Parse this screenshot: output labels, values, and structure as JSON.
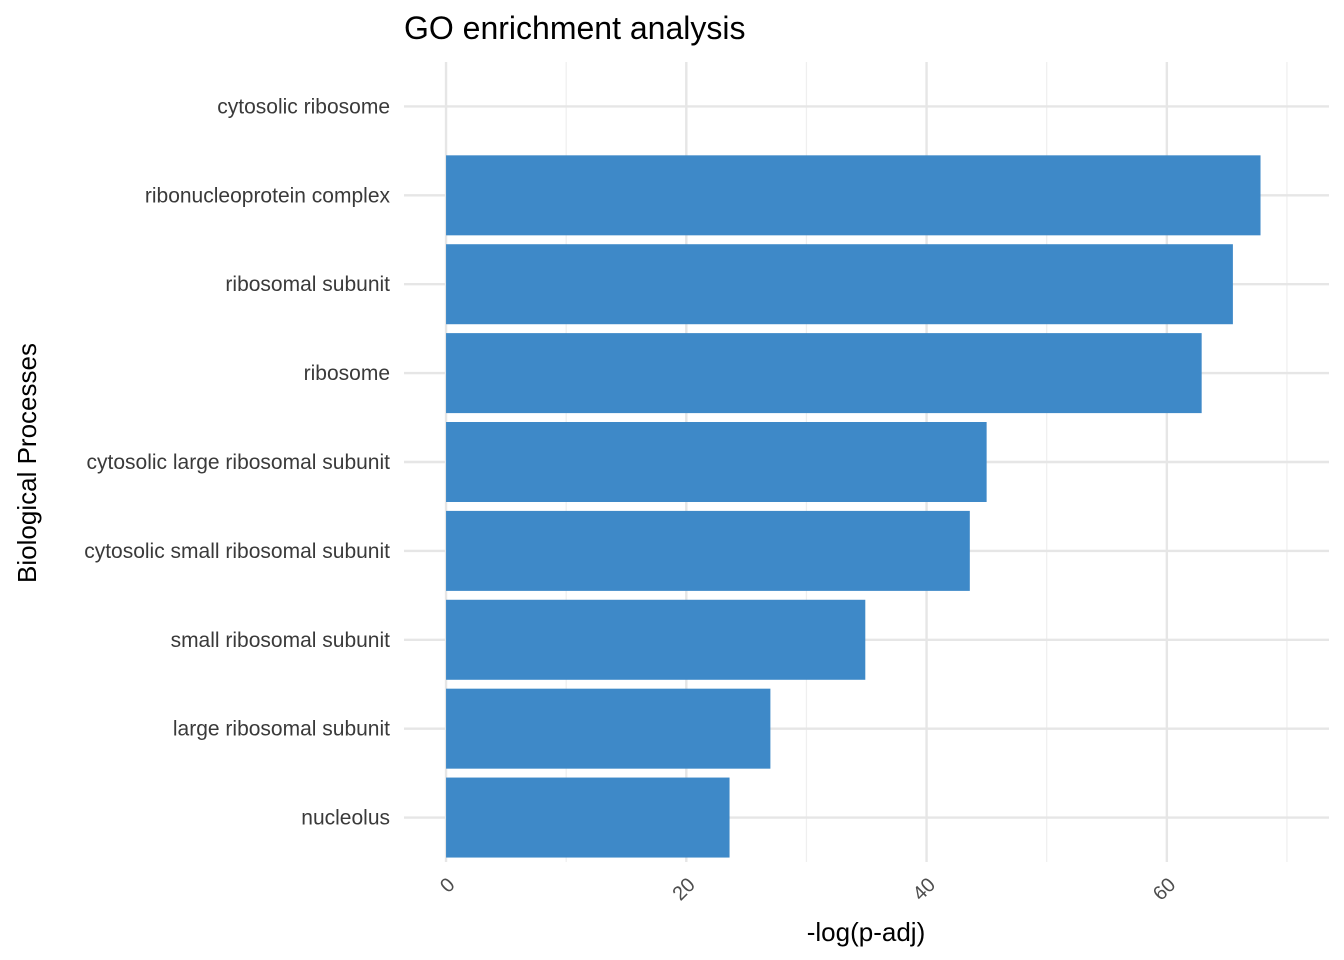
{
  "chart_data": {
    "type": "bar",
    "orientation": "horizontal",
    "title": "GO enrichment analysis",
    "xlabel": "-log(p-adj)",
    "ylabel": "Biological Processes",
    "categories": [
      "cytosolic ribosome",
      "ribonucleoprotein complex",
      "ribosomal subunit",
      "ribosome",
      "cytosolic large ribosomal subunit",
      "cytosolic small ribosomal subunit",
      "small ribosomal subunit",
      "large ribosomal subunit",
      "nucleolus"
    ],
    "values": [
      0,
      67.8,
      65.5,
      62.9,
      45.0,
      43.6,
      34.9,
      27.0,
      23.6
    ],
    "xlim": [
      -3.5,
      73.5
    ],
    "xticks": [
      0,
      20,
      40,
      60
    ],
    "xtick_labels": [
      "0",
      "20",
      "40",
      "60"
    ],
    "bar_color": "#3e89c8",
    "grid": true,
    "legend": "none"
  }
}
